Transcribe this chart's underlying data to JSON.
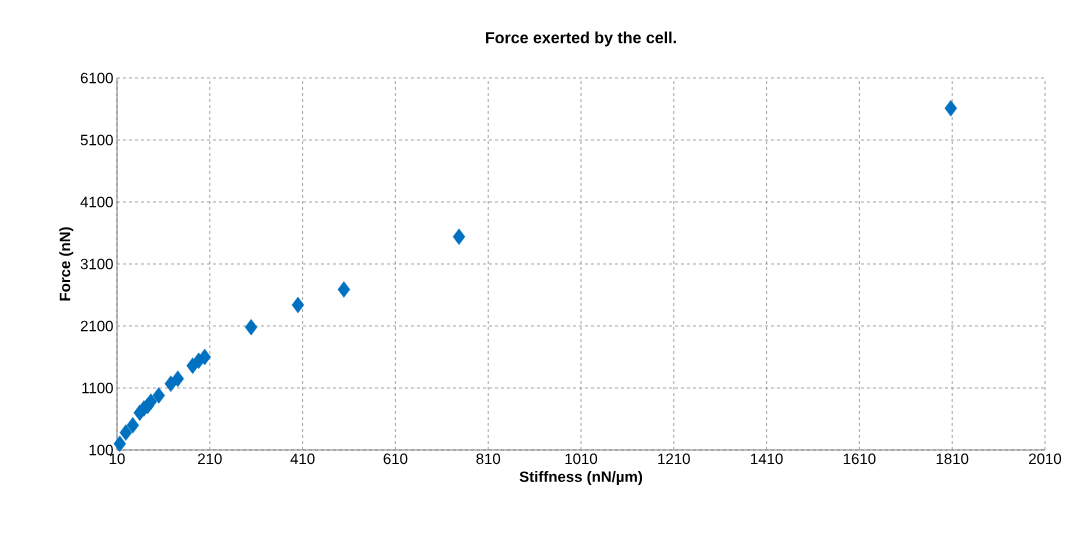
{
  "chart_data": {
    "type": "scatter",
    "title": "Force exerted by the cell.",
    "xlabel": "Stiffness (nN/µm)",
    "ylabel": "Force (nN)",
    "x": [
      16,
      29,
      44,
      59,
      68,
      76,
      83,
      100,
      126,
      141,
      173,
      186,
      199,
      299,
      400,
      499,
      747,
      1807
    ],
    "values": [
      200,
      380,
      500,
      700,
      770,
      810,
      880,
      980,
      1170,
      1250,
      1460,
      1540,
      1600,
      2080,
      2440,
      2690,
      3540,
      5610
    ],
    "color": "#0070c0",
    "marker": "diamond",
    "grid": true,
    "xlim": [
      10,
      2010
    ],
    "xticks": [
      10,
      210,
      410,
      610,
      810,
      1010,
      1210,
      1410,
      1610,
      1810,
      2010
    ],
    "ylim": [
      100,
      6100
    ],
    "yticks": [
      100,
      1100,
      2100,
      3100,
      4100,
      5100,
      6100
    ]
  }
}
